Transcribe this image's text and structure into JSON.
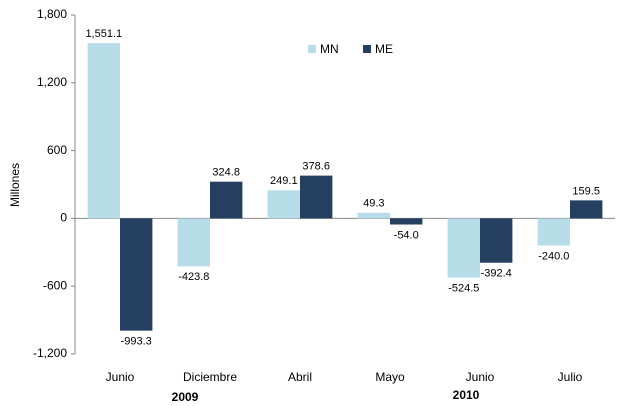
{
  "chart_data": {
    "type": "bar",
    "y_label": "Millones",
    "categories": [
      "Junio",
      "Diciembre",
      "Abril",
      "Mayo",
      "Junio",
      "Julio"
    ],
    "year_labels": [
      "2009",
      "2010"
    ],
    "series": [
      {
        "name": "MN",
        "color": "#b7dde8",
        "values": [
          1551.1,
          -423.8,
          249.1,
          49.3,
          -524.5,
          -240.0
        ],
        "value_labels": [
          "1,551.1",
          "-423.8",
          "249.1",
          "49.3",
          "-524.5",
          "-240.0"
        ]
      },
      {
        "name": "ME",
        "color": "#243f60",
        "values": [
          -993.3,
          324.8,
          378.6,
          -54.0,
          -392.4,
          159.5
        ],
        "value_labels": [
          "-993.3",
          "324.8",
          "378.6",
          "-54.0",
          "-392.4",
          "159.5"
        ]
      }
    ],
    "ylim": [
      -1200,
      1800
    ],
    "yticks": [
      {
        "value": -1200,
        "label": "-1,200"
      },
      -600,
      0,
      600,
      {
        "value": 1200,
        "label": "1,200"
      },
      {
        "value": 1800,
        "label": "1,800"
      }
    ],
    "grid": false,
    "legend": "top"
  }
}
